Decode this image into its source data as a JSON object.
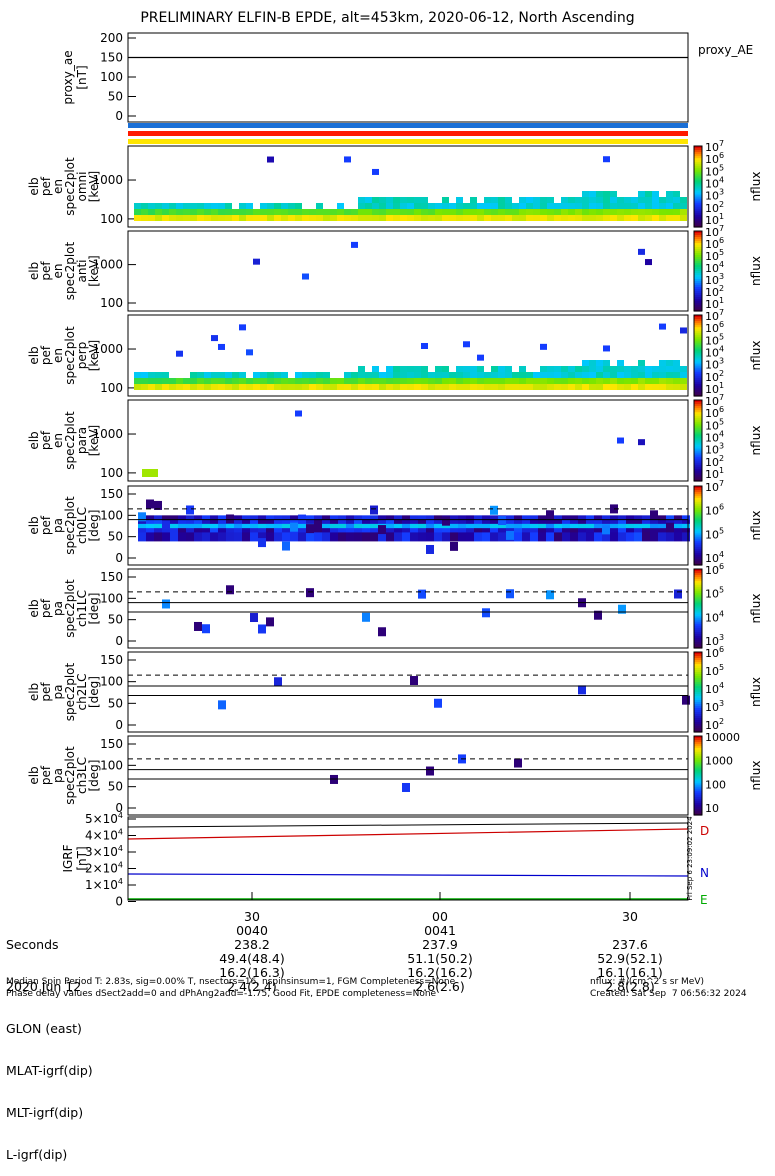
{
  "title": "PRELIMINARY ELFIN-B EPDE, alt=453km, 2020-06-12, North Ascending",
  "colors": {
    "bar_blue": "#1a6fd6",
    "bar_red": "#ff1a00",
    "bar_yellow": "#ffe600",
    "igrf_d": "#cc0000",
    "igrf_n": "#0000cc",
    "igrf_e": "#00aa00"
  },
  "panels": [
    {
      "id": "proxy_ae",
      "ylabel": [
        "proxy_ae",
        "[nT]"
      ],
      "side_label": "proxy_AE",
      "yticks": [
        "200",
        "150",
        "100",
        "50",
        "0"
      ],
      "line_value": 150
    },
    {
      "id": "omni",
      "ylabel": [
        "elb",
        "pef",
        "en",
        "spec2plot",
        "omni",
        "[keV]"
      ],
      "yticks": [
        "1000",
        "100"
      ],
      "cbar_ticks": [
        "10^7",
        "10^6",
        "10^5",
        "10^4",
        "10^3",
        "10^2",
        "10^1"
      ],
      "cbar_label": "nflux"
    },
    {
      "id": "anti",
      "ylabel": [
        "elb",
        "pef",
        "en",
        "spec2plot",
        "anti",
        "[keV]"
      ],
      "yticks": [
        "1000",
        "100"
      ],
      "cbar_ticks": [
        "10^7",
        "10^6",
        "10^5",
        "10^4",
        "10^3",
        "10^2",
        "10^1"
      ],
      "cbar_label": "nflux"
    },
    {
      "id": "perp",
      "ylabel": [
        "elb",
        "pef",
        "en",
        "spec2plot",
        "perp",
        "[keV]"
      ],
      "yticks": [
        "1000",
        "100"
      ],
      "cbar_ticks": [
        "10^7",
        "10^6",
        "10^5",
        "10^4",
        "10^3",
        "10^2",
        "10^1"
      ],
      "cbar_label": "nflux"
    },
    {
      "id": "para",
      "ylabel": [
        "elb",
        "pef",
        "en",
        "spec2plot",
        "para",
        "[keV]"
      ],
      "yticks": [
        "1000",
        "100"
      ],
      "cbar_ticks": [
        "10^7",
        "10^6",
        "10^5",
        "10^4",
        "10^3",
        "10^2",
        "10^1"
      ],
      "cbar_label": "nflux"
    },
    {
      "id": "ch0LC",
      "ylabel": [
        "elb",
        "pef",
        "pa",
        "spec2plot",
        "ch0LC",
        "[deg]"
      ],
      "yticks": [
        "150",
        "100",
        "50",
        "0"
      ],
      "cbar_ticks": [
        "10^7",
        "10^6",
        "10^5",
        "10^4"
      ],
      "cbar_label": "nflux"
    },
    {
      "id": "ch1LC",
      "ylabel": [
        "elb",
        "pef",
        "pa",
        "spec2plot",
        "ch1LC",
        "[deg]"
      ],
      "yticks": [
        "150",
        "100",
        "50",
        "0"
      ],
      "cbar_ticks": [
        "10^6",
        "10^5",
        "10^4",
        "10^3"
      ],
      "cbar_label": "nflux"
    },
    {
      "id": "ch2LC",
      "ylabel": [
        "elb",
        "pef",
        "pa",
        "spec2plot",
        "ch2LC",
        "[deg]"
      ],
      "yticks": [
        "150",
        "100",
        "50",
        "0"
      ],
      "cbar_ticks": [
        "10^6",
        "10^5",
        "10^4",
        "10^3",
        "10^2"
      ],
      "cbar_label": "nflux"
    },
    {
      "id": "ch3LC",
      "ylabel": [
        "elb",
        "pef",
        "pa",
        "spec2plot",
        "ch3LC",
        "[deg]"
      ],
      "yticks": [
        "150",
        "100",
        "50",
        "0"
      ],
      "cbar_ticks": [
        "10000",
        "1000",
        "100",
        "10"
      ],
      "cbar_label": "nflux"
    },
    {
      "id": "igrf",
      "ylabel": [
        "IGRF",
        "[nT]"
      ],
      "yticks": [
        "5×10^4",
        "4×10^4",
        "3×10^4",
        "2×10^4",
        "1×10^4",
        "0"
      ],
      "comp_labels": [
        "D",
        "N",
        "E"
      ],
      "side_text": "Fri Sep  6 23:09:02 2024"
    }
  ],
  "chart_data": {
    "type": "heatmap",
    "x_unit": "Seconds",
    "xticks": [
      "30",
      "00",
      "30"
    ],
    "rows": [
      {
        "label": "Seconds",
        "values": [
          "30",
          "00",
          "30"
        ]
      },
      {
        "label": "2020 Jun 12",
        "values": [
          "0040",
          "0041",
          ""
        ]
      },
      {
        "label": "GLON (east)",
        "values": [
          "238.2",
          "237.9",
          "237.6"
        ]
      },
      {
        "label": "MLAT-igrf(dip)",
        "values": [
          "49.4(48.4)",
          "51.1(50.2)",
          "52.9(52.1)"
        ]
      },
      {
        "label": "MLT-igrf(dip)",
        "values": [
          "16.2(16.3)",
          "16.2(16.2)",
          "16.1(16.1)"
        ]
      },
      {
        "label": "L-igrf(dip)",
        "values": [
          "2.4(2.4)",
          "2.6(2.6)",
          "2.8(2.8)"
        ]
      }
    ],
    "proxy_ae_nT": 150,
    "igrf_nT": {
      "D": [
        36500,
        41500
      ],
      "N": [
        16500,
        14800
      ],
      "E": [
        0,
        0
      ]
    },
    "ref_lines_deg": {
      "ch0LC": [
        90,
        115
      ],
      "ch1LC": [
        68,
        90,
        115
      ],
      "ch2LC": [
        68,
        90,
        115
      ],
      "ch3LC": [
        68,
        90,
        115
      ]
    }
  },
  "footer": {
    "left1": "Median Spin Period T: 2.83s, sig=0.00% T, nsectors=16, nspinsinsum=1, FGM Completeness=None",
    "left2": "Phase delay values dSect2add=0 and dPhAng2add=-1.75, Good Fit, EPDE completeness=None",
    "right1": "nflux: #/(cm^2 s sr MeV)",
    "right2": "Created: Sat Sep  7 06:56:32 2024"
  }
}
